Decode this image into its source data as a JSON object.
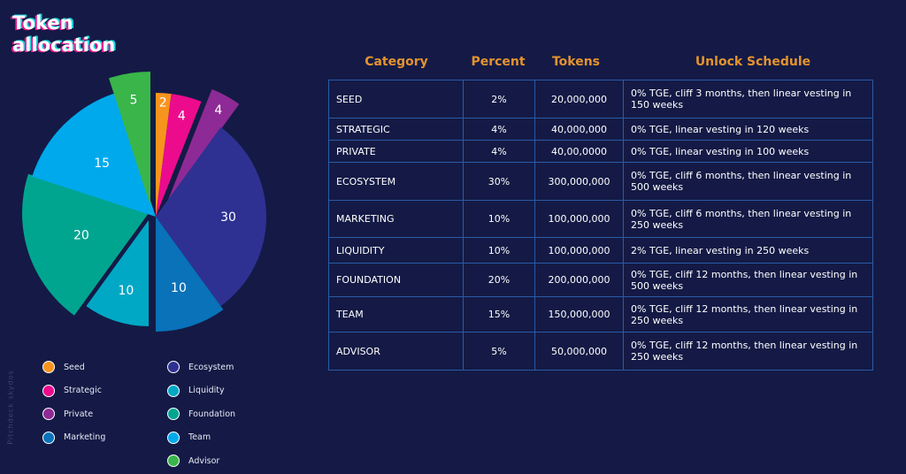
{
  "title": "Token\nallocation",
  "watermark": "Pitchdeck skydos",
  "chart_data": {
    "type": "pie",
    "slices": [
      {
        "name": "Seed",
        "value": 2,
        "label": "2",
        "color": "#f7941d"
      },
      {
        "name": "Strategic",
        "value": 4,
        "label": "4",
        "color": "#ec0b8d"
      },
      {
        "name": "Private",
        "value": 4,
        "label": "4",
        "color": "#8e2a95"
      },
      {
        "name": "Ecosystem",
        "value": 30,
        "label": "30",
        "color": "#2e3192"
      },
      {
        "name": "Marketing",
        "value": 10,
        "label": "10",
        "color": "#0972b9"
      },
      {
        "name": "Liquidity",
        "value": 10,
        "label": "10",
        "color": "#00a8c6"
      },
      {
        "name": "Foundation",
        "value": 20,
        "label": "20",
        "color": "#00a590"
      },
      {
        "name": "Team",
        "value": 15,
        "label": "15",
        "color": "#00a9ec"
      },
      {
        "name": "Advisor",
        "value": 5,
        "label": "5",
        "color": "#39b54a"
      }
    ]
  },
  "legend_left": [
    {
      "label": "Seed",
      "color": "#f7941d"
    },
    {
      "label": "Strategic",
      "color": "#ec0b8d"
    },
    {
      "label": "Private",
      "color": "#8e2a95"
    },
    {
      "label": "Marketing",
      "color": "#0972b9"
    }
  ],
  "legend_right": [
    {
      "label": "Ecosystem",
      "color": "#2e3192"
    },
    {
      "label": "Liquidity",
      "color": "#00a8c6"
    },
    {
      "label": "Foundation",
      "color": "#00a590"
    },
    {
      "label": "Team",
      "color": "#00a9ec"
    },
    {
      "label": "Advisor",
      "color": "#39b54a"
    }
  ],
  "table": {
    "headers": [
      "Category",
      "Percent",
      "Tokens",
      "Unlock Schedule"
    ],
    "rows": [
      {
        "category": "SEED",
        "percent": "2%",
        "tokens": "20,000,000",
        "schedule": "0% TGE, cliff 3 months, then linear vesting in 150 weeks"
      },
      {
        "category": "STRATEGIC",
        "percent": "4%",
        "tokens": "40,000,000",
        "schedule": "0% TGE, linear vesting in 120 weeks"
      },
      {
        "category": "PRIVATE",
        "percent": "4%",
        "tokens": "40,00,0000",
        "schedule": "0% TGE, linear vesting in 100 weeks"
      },
      {
        "category": "ECOSYSTEM",
        "percent": "30%",
        "tokens": "300,000,000",
        "schedule": "0% TGE, cliff 6 months, then linear vesting in 500 weeks"
      },
      {
        "category": "MARKETING",
        "percent": "10%",
        "tokens": "100,000,000",
        "schedule": "0% TGE, cliff 6 months, then linear vesting in 250 weeks"
      },
      {
        "category": "LIQUIDITY",
        "percent": "10%",
        "tokens": "100,000,000",
        "schedule": "2% TGE, linear vesting in 250 weeks"
      },
      {
        "category": "FOUNDATION",
        "percent": "20%",
        "tokens": "200,000,000",
        "schedule": "0% TGE, cliff 12 months, then linear vesting in 500 weeks"
      },
      {
        "category": "TEAM",
        "percent": "15%",
        "tokens": "150,000,000",
        "schedule": "0% TGE, cliff 12 months, then linear vesting in 250 weeks"
      },
      {
        "category": "ADVISOR",
        "percent": "5%",
        "tokens": "50,000,000",
        "schedule": "0% TGE, cliff 12 months, then linear vesting in 250 weeks"
      }
    ]
  }
}
